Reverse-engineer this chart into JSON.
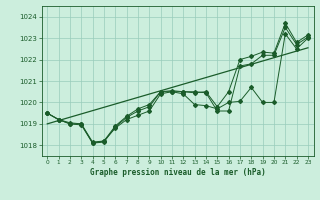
{
  "title": "Graphe pression niveau de la mer (hPa)",
  "xlabel_ticks": [
    0,
    1,
    2,
    3,
    4,
    5,
    6,
    7,
    8,
    9,
    10,
    11,
    12,
    13,
    14,
    15,
    16,
    17,
    18,
    19,
    20,
    21,
    22,
    23
  ],
  "ylim": [
    1017.5,
    1024.5
  ],
  "xlim": [
    -0.5,
    23.5
  ],
  "yticks": [
    1018,
    1019,
    1020,
    1021,
    1022,
    1023,
    1024
  ],
  "background_color": "#cceedd",
  "grid_color": "#99ccbb",
  "line_color": "#1a5c2a",
  "series1": [
    1019.5,
    1019.2,
    1019.0,
    1019.0,
    1018.1,
    1018.2,
    1018.8,
    1019.2,
    1019.4,
    1019.6,
    1020.4,
    1020.5,
    1020.4,
    1019.9,
    1019.85,
    1019.7,
    1020.0,
    1020.05,
    1020.7,
    1020.0,
    1020.0,
    1023.2,
    1022.5,
    1023.0
  ],
  "series2": [
    1019.5,
    1019.2,
    1019.0,
    1018.95,
    1018.1,
    1018.15,
    1018.85,
    1019.3,
    1019.6,
    1019.8,
    1020.5,
    1020.55,
    1020.5,
    1020.5,
    1020.45,
    1019.6,
    1019.6,
    1021.7,
    1021.8,
    1022.2,
    1022.2,
    1023.5,
    1022.7,
    1023.05
  ],
  "series3": [
    1019.5,
    1019.2,
    1019.05,
    1019.0,
    1018.15,
    1018.2,
    1018.9,
    1019.35,
    1019.7,
    1019.9,
    1020.5,
    1020.5,
    1020.5,
    1020.45,
    1020.5,
    1019.8,
    1020.5,
    1022.0,
    1022.15,
    1022.35,
    1022.3,
    1023.7,
    1022.8,
    1023.15
  ],
  "trend_x": [
    0,
    23
  ],
  "trend_y": [
    1019.0,
    1022.55
  ]
}
